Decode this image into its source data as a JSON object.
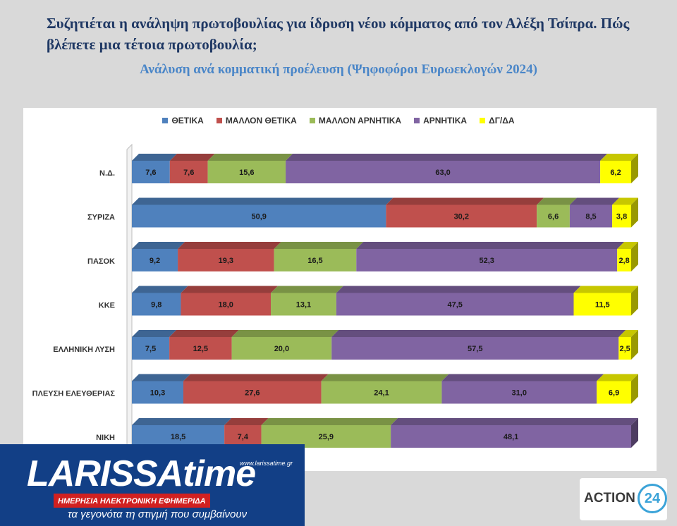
{
  "title": "Συζητιέται η ανάληψη πρωτοβουλίας για ίδρυση νέου κόμματος από τον Αλέξη Τσίπρα. Πώς βλέπετε μια τέτοια πρωτοβουλία;",
  "subtitle": "Ανάλυση ανά κομματική προέλευση (Ψηφοφόροι Ευρωεκλογών 2024)",
  "chart_data": {
    "type": "bar",
    "orientation": "horizontal",
    "stacked": true,
    "percent_stacked": true,
    "legend_position": "top",
    "grid": false,
    "categories": [
      "Ν.Δ.",
      "ΣΥΡΙΖΑ",
      "ΠΑΣΟΚ",
      "ΚΚΕ",
      "ΕΛΛΗΝΙΚΗ ΛΥΣΗ",
      "ΠΛΕΥΣΗ ΕΛΕΥΘΕΡΙΑΣ",
      "ΝΙΚΗ"
    ],
    "series": [
      {
        "name": "ΘΕΤΙΚΑ",
        "color": "#4f81bd",
        "values": [
          7.6,
          50.9,
          9.2,
          9.8,
          7.5,
          10.3,
          18.5
        ]
      },
      {
        "name": "ΜΑΛΛΟΝ ΘΕΤΙΚΑ",
        "color": "#c0504d",
        "values": [
          7.6,
          30.2,
          19.3,
          18.0,
          12.5,
          27.6,
          7.4
        ]
      },
      {
        "name": "ΜΑΛΛΟΝ ΑΡΝΗΤΙΚΑ",
        "color": "#9bbb59",
        "values": [
          15.6,
          6.6,
          16.5,
          13.1,
          20.0,
          24.1,
          25.9
        ]
      },
      {
        "name": "ΑΡΝΗΤΙΚΑ",
        "color": "#8064a2",
        "values": [
          63.0,
          8.5,
          52.3,
          47.5,
          57.5,
          31.0,
          48.1
        ]
      },
      {
        "name": "ΔΓ/ΔΑ",
        "color": "#ffff00",
        "values": [
          6.2,
          3.8,
          2.8,
          11.5,
          2.5,
          6.9,
          null
        ]
      }
    ]
  },
  "logos": {
    "larissa": {
      "name": "LARISSAtime",
      "url": "www.larissatime.gr",
      "subtitle": "ΗΜΕΡΗΣΙΑ ΗΛΕΚΤΡΟΝΙΚΗ ΕΦΗΜΕΡΙΔΑ",
      "slogan": "τα γεγονότα τη στιγμή που συμβαίνουν"
    },
    "action24": {
      "text": "ACTION",
      "number": "24"
    }
  }
}
